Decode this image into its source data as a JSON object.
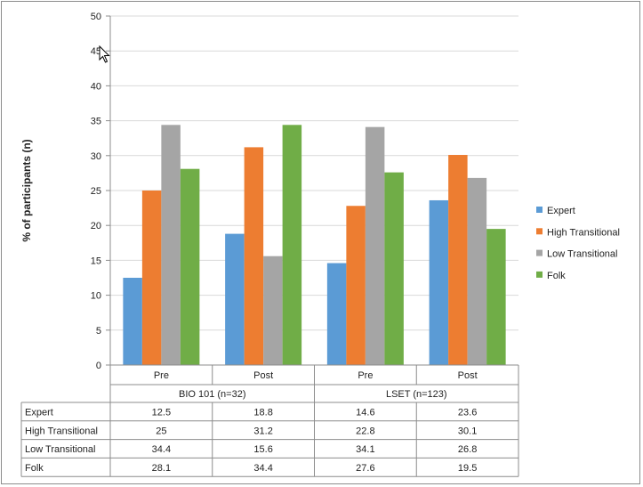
{
  "chart_data": {
    "type": "bar",
    "ylabel": "% of participants (n)",
    "ylim": [
      0,
      50
    ],
    "yticks": [
      0,
      5,
      10,
      15,
      20,
      25,
      30,
      35,
      40,
      45,
      50
    ],
    "grid": true,
    "legend_placement": "right",
    "groups": [
      {
        "label": "BIO 101 (n=32)",
        "categories": [
          "Pre",
          "Post"
        ]
      },
      {
        "label": "LSET (n=123)",
        "categories": [
          "Pre",
          "Post"
        ]
      }
    ],
    "categories": [
      "Pre",
      "Post",
      "Pre",
      "Post"
    ],
    "series": [
      {
        "name": "Expert",
        "color": "#5b9bd5",
        "values": [
          12.5,
          18.8,
          14.6,
          23.6
        ]
      },
      {
        "name": "High Transitional",
        "color": "#ed7d31",
        "values": [
          25,
          31.2,
          22.8,
          30.1
        ]
      },
      {
        "name": "Low Transitional",
        "color": "#a5a5a5",
        "values": [
          34.4,
          15.6,
          34.1,
          26.8
        ]
      },
      {
        "name": "Folk",
        "color": "#70ad47",
        "values": [
          28.1,
          34.4,
          27.6,
          19.5
        ]
      }
    ]
  }
}
